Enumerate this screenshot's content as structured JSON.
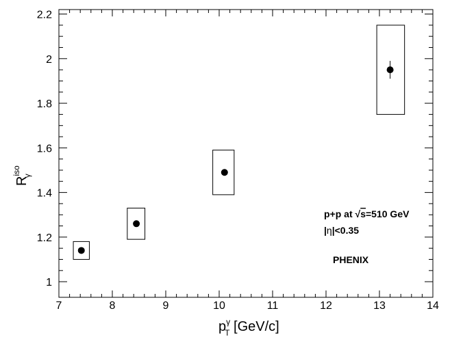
{
  "chart_data": {
    "type": "scatter",
    "title": "",
    "xlabel": {
      "main": "p",
      "sup": "γ",
      "sub": "T",
      "unit": " [GeV/c]"
    },
    "ylabel": {
      "main": "R",
      "sup": "iso",
      "sub": "γ"
    },
    "xlim": [
      7,
      14
    ],
    "ylim": [
      0.93,
      2.22
    ],
    "x_ticks": [
      7,
      8,
      9,
      10,
      11,
      12,
      13,
      14
    ],
    "y_ticks": [
      1,
      1.2,
      1.4,
      1.6,
      1.8,
      2,
      2.2
    ],
    "x_tick_labels": [
      "7",
      "8",
      "9",
      "10",
      "11",
      "12",
      "13",
      "14"
    ],
    "y_tick_labels": [
      "1",
      "1.2",
      "1.4",
      "1.6",
      "1.8",
      "2",
      "2.2"
    ],
    "grid": false,
    "legend": "none",
    "points": [
      {
        "x": 7.42,
        "y": 1.14,
        "stat_err": 0.0,
        "sys_box": {
          "x0": 7.27,
          "x1": 7.57,
          "y0": 1.1,
          "y1": 1.18
        }
      },
      {
        "x": 8.45,
        "y": 1.26,
        "stat_err": 0.0,
        "sys_box": {
          "x0": 8.28,
          "x1": 8.61,
          "y0": 1.19,
          "y1": 1.33
        }
      },
      {
        "x": 10.1,
        "y": 1.49,
        "stat_err": 0.0,
        "sys_box": {
          "x0": 9.88,
          "x1": 10.28,
          "y0": 1.39,
          "y1": 1.59
        }
      },
      {
        "x": 13.2,
        "y": 1.95,
        "stat_err": 0.04,
        "sys_box": {
          "x0": 12.95,
          "x1": 13.47,
          "y0": 1.75,
          "y1": 2.15
        }
      }
    ],
    "annotations": {
      "line1_pre": "p+p at ",
      "line1_sqrt": "√",
      "line1_s": "s",
      "line1_post": "=510 GeV",
      "line2_pre": "|",
      "line2_eta": "η",
      "line2_post": "|<0.35",
      "experiment": "PHENIX"
    }
  }
}
